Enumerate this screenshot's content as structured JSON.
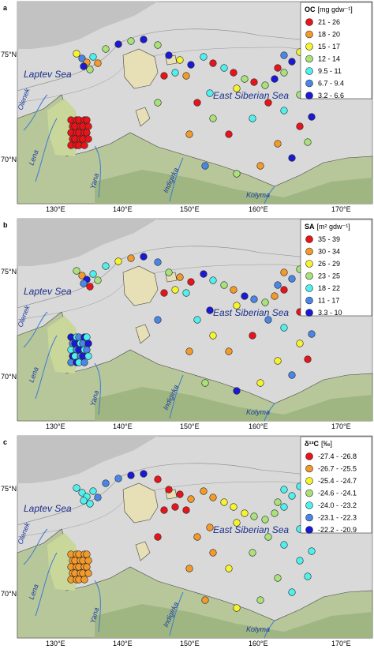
{
  "panels": [
    {
      "letter": "a",
      "legend": {
        "title": "OC",
        "unit": "[mg gdw⁻¹]",
        "classes": [
          {
            "label": "21 - 26",
            "color": "#e8141a"
          },
          {
            "label": "18 - 20",
            "color": "#f39a2a"
          },
          {
            "label": "15 - 17",
            "color": "#f6f42c"
          },
          {
            "label": "12 - 14",
            "color": "#a9e27b"
          },
          {
            "label": "9.5 - 11",
            "color": "#4ff0ee"
          },
          {
            "label": "6.7 - 9.4",
            "color": "#4a86e8"
          },
          {
            "label": "3.2 - 6.6",
            "color": "#1a1ad6"
          }
        ]
      }
    },
    {
      "letter": "b",
      "legend": {
        "title": "SA",
        "unit": "[m² gdw⁻¹]",
        "classes": [
          {
            "label": "35 - 39",
            "color": "#e8141a"
          },
          {
            "label": "30 - 34",
            "color": "#f39a2a"
          },
          {
            "label": "26 - 29",
            "color": "#f6f42c"
          },
          {
            "label": "23 - 25",
            "color": "#a9e27b"
          },
          {
            "label": "18 - 22",
            "color": "#4ff0ee"
          },
          {
            "label": "11 - 17",
            "color": "#4a86e8"
          },
          {
            "label": "3.3 - 10",
            "color": "#1a1ad6"
          }
        ]
      }
    },
    {
      "letter": "c",
      "legend": {
        "title": "δ¹³C",
        "unit": "[‰]",
        "classes": [
          {
            "label": "-27.4 - -26.8",
            "color": "#e8141a"
          },
          {
            "label": "-26.7 - -25.5",
            "color": "#f39a2a"
          },
          {
            "label": "-25.4 - -24.7",
            "color": "#f6f42c"
          },
          {
            "label": "-24.6 - -24.1",
            "color": "#a9e27b"
          },
          {
            "label": "-24.0 - -23.2",
            "color": "#4ff0ee"
          },
          {
            "label": "-23.1 - -22.3",
            "color": "#4a86e8"
          },
          {
            "label": "-22.2 - -20.9",
            "color": "#1a1ad6"
          }
        ]
      }
    }
  ],
  "seas": {
    "laptev": "Laptev Sea",
    "east_siberian": "East Siberian Sea"
  },
  "rivers": {
    "olenek": "Olenek",
    "lena": "Lena",
    "yana": "Yana",
    "indigirka": "Indigirka",
    "kolyma": "Kolyma"
  },
  "latitudes": [
    "75°N",
    "70°N"
  ],
  "longitudes": [
    "130°E",
    "140°E",
    "150°E",
    "160°E",
    "170°E"
  ]
}
